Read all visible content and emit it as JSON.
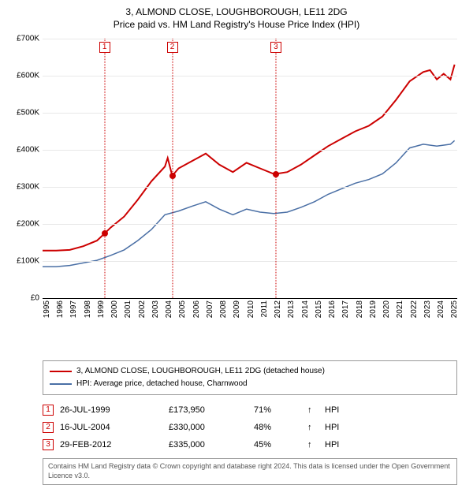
{
  "title": {
    "line1": "3, ALMOND CLOSE, LOUGHBOROUGH, LE11 2DG",
    "line2": "Price paid vs. HM Land Registry's House Price Index (HPI)"
  },
  "chart": {
    "type": "line",
    "x_range": [
      1995,
      2025.5
    ],
    "y_range": [
      0,
      700000
    ],
    "y_ticks": [
      0,
      100000,
      200000,
      300000,
      400000,
      500000,
      600000,
      700000
    ],
    "y_tick_labels": [
      "£0",
      "£100K",
      "£200K",
      "£300K",
      "£400K",
      "£500K",
      "£600K",
      "£700K"
    ],
    "x_ticks": [
      1995,
      1996,
      1997,
      1998,
      1999,
      2000,
      2001,
      2002,
      2003,
      2004,
      2005,
      2006,
      2007,
      2008,
      2009,
      2010,
      2011,
      2012,
      2013,
      2014,
      2015,
      2016,
      2017,
      2018,
      2019,
      2020,
      2021,
      2022,
      2023,
      2024,
      2025
    ],
    "grid_color": "#e8e8e8",
    "background_color": "#ffffff",
    "series": [
      {
        "name": "price_paid",
        "color": "#cc0000",
        "width": 2,
        "data": [
          [
            1995,
            128000
          ],
          [
            1996,
            128000
          ],
          [
            1997,
            130000
          ],
          [
            1998,
            140000
          ],
          [
            1999,
            155000
          ],
          [
            1999.56,
            173950
          ],
          [
            2000,
            190000
          ],
          [
            2001,
            220000
          ],
          [
            2002,
            265000
          ],
          [
            2003,
            315000
          ],
          [
            2004,
            355000
          ],
          [
            2004.2,
            378000
          ],
          [
            2004.54,
            330000
          ],
          [
            2005,
            350000
          ],
          [
            2006,
            370000
          ],
          [
            2007,
            390000
          ],
          [
            2008,
            360000
          ],
          [
            2009,
            340000
          ],
          [
            2010,
            365000
          ],
          [
            2011,
            350000
          ],
          [
            2012,
            335000
          ],
          [
            2012.16,
            335000
          ],
          [
            2013,
            340000
          ],
          [
            2014,
            360000
          ],
          [
            2015,
            385000
          ],
          [
            2016,
            410000
          ],
          [
            2017,
            430000
          ],
          [
            2018,
            450000
          ],
          [
            2019,
            465000
          ],
          [
            2020,
            490000
          ],
          [
            2021,
            535000
          ],
          [
            2022,
            585000
          ],
          [
            2023,
            610000
          ],
          [
            2023.5,
            615000
          ],
          [
            2024,
            590000
          ],
          [
            2024.5,
            605000
          ],
          [
            2025,
            590000
          ],
          [
            2025.3,
            630000
          ]
        ]
      },
      {
        "name": "hpi",
        "color": "#4a6fa5",
        "width": 1.5,
        "data": [
          [
            1995,
            85000
          ],
          [
            1996,
            85000
          ],
          [
            1997,
            88000
          ],
          [
            1998,
            95000
          ],
          [
            1999,
            102000
          ],
          [
            2000,
            115000
          ],
          [
            2001,
            130000
          ],
          [
            2002,
            155000
          ],
          [
            2003,
            185000
          ],
          [
            2004,
            225000
          ],
          [
            2005,
            235000
          ],
          [
            2006,
            248000
          ],
          [
            2007,
            260000
          ],
          [
            2008,
            240000
          ],
          [
            2009,
            225000
          ],
          [
            2010,
            240000
          ],
          [
            2011,
            232000
          ],
          [
            2012,
            228000
          ],
          [
            2013,
            232000
          ],
          [
            2014,
            245000
          ],
          [
            2015,
            260000
          ],
          [
            2016,
            280000
          ],
          [
            2017,
            295000
          ],
          [
            2018,
            310000
          ],
          [
            2019,
            320000
          ],
          [
            2020,
            335000
          ],
          [
            2021,
            365000
          ],
          [
            2022,
            405000
          ],
          [
            2023,
            415000
          ],
          [
            2024,
            410000
          ],
          [
            2025,
            415000
          ],
          [
            2025.3,
            425000
          ]
        ]
      }
    ],
    "markers": [
      {
        "index": "1",
        "year": 1999.56,
        "value": 173950
      },
      {
        "index": "2",
        "year": 2004.54,
        "value": 330000
      },
      {
        "index": "3",
        "year": 2012.16,
        "value": 335000
      }
    ],
    "legend": [
      {
        "color": "#cc0000",
        "label": "3, ALMOND CLOSE, LOUGHBOROUGH, LE11 2DG (detached house)"
      },
      {
        "color": "#4a6fa5",
        "label": "HPI: Average price, detached house, Charnwood"
      }
    ]
  },
  "sales": [
    {
      "index": "1",
      "date": "26-JUL-1999",
      "price": "£173,950",
      "pct": "71%",
      "arrow": "↑",
      "ref": "HPI"
    },
    {
      "index": "2",
      "date": "16-JUL-2004",
      "price": "£330,000",
      "pct": "48%",
      "arrow": "↑",
      "ref": "HPI"
    },
    {
      "index": "3",
      "date": "29-FEB-2012",
      "price": "£335,000",
      "pct": "45%",
      "arrow": "↑",
      "ref": "HPI"
    }
  ],
  "footnote": "Contains HM Land Registry data © Crown copyright and database right 2024. This data is licensed under the Open Government Licence v3.0."
}
